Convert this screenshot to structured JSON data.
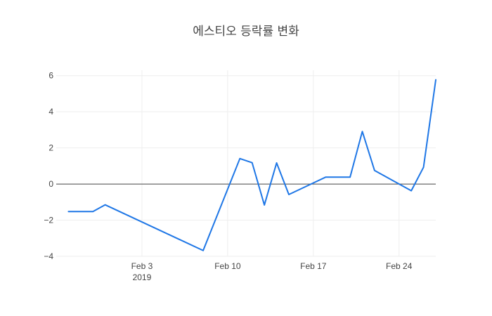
{
  "chart_data": {
    "type": "line",
    "title": "에스티오 등락률 변화",
    "xlabel": "",
    "ylabel": "",
    "x": [
      "2019-01-28",
      "2019-01-30",
      "2019-01-31",
      "2019-02-08",
      "2019-02-11",
      "2019-02-12",
      "2019-02-13",
      "2019-02-14",
      "2019-02-15",
      "2019-02-18",
      "2019-02-19",
      "2019-02-20",
      "2019-02-21",
      "2019-02-22",
      "2019-02-25",
      "2019-02-26",
      "2019-02-27"
    ],
    "y": [
      -1.52,
      -1.52,
      -1.15,
      -3.68,
      1.41,
      1.18,
      -1.16,
      1.17,
      -0.58,
      0.38,
      0.38,
      0.38,
      2.91,
      0.75,
      -0.37,
      0.93,
      5.77
    ],
    "xlim": [
      "2019-01-27",
      "2019-02-27"
    ],
    "ylim": [
      -4,
      6.3
    ],
    "x_ticks": [
      {
        "date": "2019-02-03",
        "label": "Feb 3",
        "sublabel": "2019"
      },
      {
        "date": "2019-02-10",
        "label": "Feb 10",
        "sublabel": ""
      },
      {
        "date": "2019-02-17",
        "label": "Feb 17",
        "sublabel": ""
      },
      {
        "date": "2019-02-24",
        "label": "Feb 24",
        "sublabel": ""
      }
    ],
    "y_ticks": [
      {
        "value": -4,
        "label": "−4"
      },
      {
        "value": -2,
        "label": "−2"
      },
      {
        "value": 0,
        "label": "0"
      },
      {
        "value": 2,
        "label": "2"
      },
      {
        "value": 4,
        "label": "4"
      },
      {
        "value": 6,
        "label": "6"
      }
    ],
    "grid": true,
    "zero_line": true,
    "line_color": "#1f77e6",
    "grid_color": "#eeeeee",
    "zero_line_color": "#444444"
  }
}
